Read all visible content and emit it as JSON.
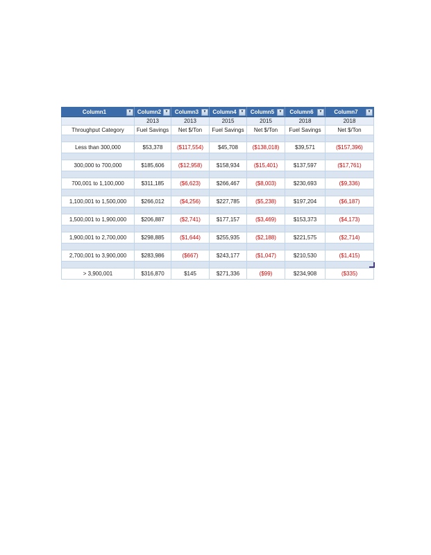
{
  "colors": {
    "header_bg": "#3b6ba8",
    "band_bg": "#dbe5f1",
    "grid": "#c2d4e8",
    "negative_text": "#d40000",
    "positive_text": "#1a1a1a",
    "handle": "#433a7a"
  },
  "table": {
    "filter_icon": "▼",
    "header": [
      "Column1",
      "Column2",
      "Column3",
      "Column4",
      "Column5",
      "Column6",
      "Column7"
    ],
    "years": [
      "",
      "2013",
      "2013",
      "2015",
      "2015",
      "2018",
      "2018"
    ],
    "subheader": [
      "Throughput Category",
      "Fuel Savings",
      "Net $/Ton",
      "Fuel Savings",
      "Net $/Ton",
      "Fuel Savings",
      "Net $/Ton"
    ],
    "rows": [
      {
        "category": "Less than 300,000",
        "cells": [
          "$53,378",
          "($117,554)",
          "$45,708",
          "($138,018)",
          "$39,571",
          "($157,396)"
        ]
      },
      {
        "category": "300,000 to 700,000",
        "cells": [
          "$185,606",
          "($12,958)",
          "$158,934",
          "($15,401)",
          "$137,597",
          "($17,761)"
        ]
      },
      {
        "category": "700,001 to 1,100,000",
        "cells": [
          "$311,185",
          "($6,623)",
          "$266,467",
          "($8,003)",
          "$230,693",
          "($9,336)"
        ]
      },
      {
        "category": "1,100,001 to 1,500,000",
        "cells": [
          "$266,012",
          "($4,256)",
          "$227,785",
          "($5,238)",
          "$197,204",
          "($6,187)"
        ]
      },
      {
        "category": "1,500,001 to 1,900,000",
        "cells": [
          "$206,887",
          "($2,741)",
          "$177,157",
          "($3,469)",
          "$153,373",
          "($4,173)"
        ]
      },
      {
        "category": "1,900,001 to 2,700,000",
        "cells": [
          "$298,885",
          "($1,644)",
          "$255,935",
          "($2,188)",
          "$221,575",
          "($2,714)"
        ]
      },
      {
        "category": "2,700,001 to 3,900,000",
        "cells": [
          "$283,986",
          "($667)",
          "$243,177",
          "($1,047)",
          "$210,530",
          "($1,415)"
        ]
      },
      {
        "category": "> 3,900,001",
        "cells": [
          "$316,870",
          "$145",
          "$271,336",
          "($99)",
          "$234,908",
          "($335)"
        ]
      }
    ]
  }
}
